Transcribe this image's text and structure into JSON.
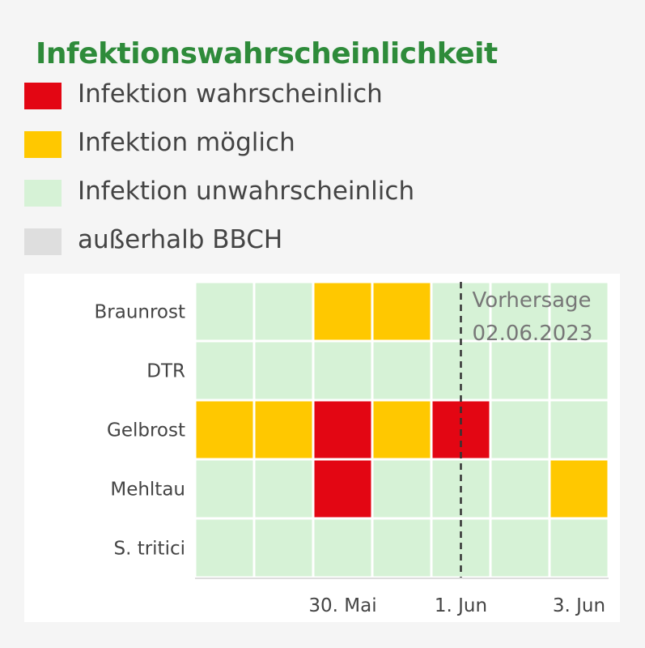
{
  "legend": {
    "title": "Infektionswahrscheinlichkeit",
    "items": [
      {
        "label": "Infektion wahrscheinlich",
        "color": "#e30613"
      },
      {
        "label": "Infektion möglich",
        "color": "#ffc800"
      },
      {
        "label": "Infektion unwahrscheinlich",
        "color": "#d6f2d6"
      },
      {
        "label": "außerhalb BBCH",
        "color": "#dedede"
      }
    ]
  },
  "chart_data": {
    "type": "heatmap",
    "rows": [
      "Braunrost",
      "DTR",
      "Gelbrost",
      "Mehltau",
      "S. tritici"
    ],
    "columns": [
      "28.05.2023",
      "29.05.2023",
      "30.05.2023",
      "31.05.2023",
      "01.06.2023",
      "02.06.2023",
      "03.06.2023"
    ],
    "x_tick_labels": [
      {
        "label": "30. Mai",
        "column_index": 2
      },
      {
        "label": "1. Jun",
        "column_index": 4
      },
      {
        "label": "3. Jun",
        "column_index": 6
      }
    ],
    "values": [
      [
        "unwahrscheinlich",
        "unwahrscheinlich",
        "möglich",
        "möglich",
        "unwahrscheinlich",
        "unwahrscheinlich",
        "unwahrscheinlich"
      ],
      [
        "unwahrscheinlich",
        "unwahrscheinlich",
        "unwahrscheinlich",
        "unwahrscheinlich",
        "unwahrscheinlich",
        "unwahrscheinlich",
        "unwahrscheinlich"
      ],
      [
        "möglich",
        "möglich",
        "wahrscheinlich",
        "möglich",
        "wahrscheinlich",
        "unwahrscheinlich",
        "unwahrscheinlich"
      ],
      [
        "unwahrscheinlich",
        "unwahrscheinlich",
        "wahrscheinlich",
        "unwahrscheinlich",
        "unwahrscheinlich",
        "unwahrscheinlich",
        "möglich"
      ],
      [
        "unwahrscheinlich",
        "unwahrscheinlich",
        "unwahrscheinlich",
        "unwahrscheinlich",
        "unwahrscheinlich",
        "unwahrscheinlich",
        "unwahrscheinlich"
      ]
    ],
    "category_colors": {
      "wahrscheinlich": "#e30613",
      "möglich": "#ffc800",
      "unwahrscheinlich": "#d6f2d6",
      "außerhalb BBCH": "#dedede"
    },
    "forecast_marker": {
      "label_line1": "Vorhersage",
      "label_line2": "02.06.2023",
      "position_in_columns": 4.5
    },
    "grid": true
  }
}
